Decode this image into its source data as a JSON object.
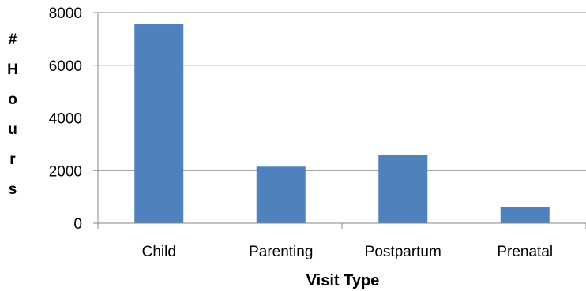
{
  "chart_data": {
    "type": "bar",
    "title": "",
    "xlabel": "Visit Type",
    "ylabel": "# Hours",
    "categories": [
      "Child",
      "Parenting",
      "Postpartum",
      "Prenatal"
    ],
    "values": [
      7550,
      2150,
      2600,
      600
    ],
    "ylim": [
      0,
      8000
    ],
    "yticks": [
      0,
      2000,
      4000,
      6000,
      8000
    ],
    "grid": true,
    "legend": "none",
    "bar_color": "#4F81BD",
    "grid_color": "#878787"
  }
}
